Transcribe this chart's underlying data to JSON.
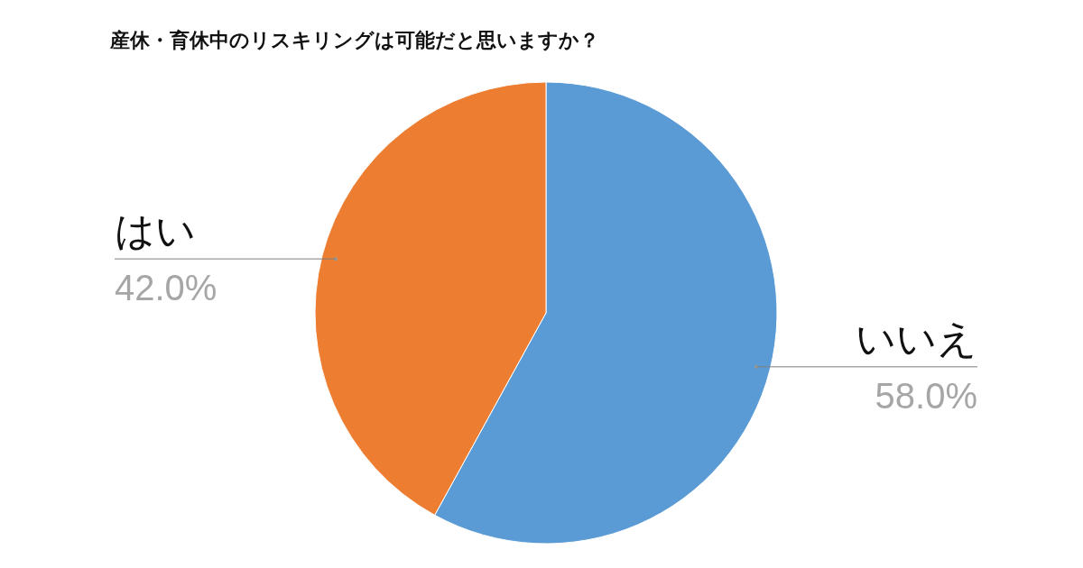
{
  "chart_data": {
    "type": "pie",
    "title": "産休・育休中のリスキリングは可能だと思いますか？",
    "categories": [
      "いいえ",
      "はい"
    ],
    "values": [
      58.0,
      42.0
    ],
    "colors": [
      "#5b9bd5",
      "#ed7d31"
    ],
    "value_labels": [
      "58.0%",
      "42.0%"
    ]
  }
}
